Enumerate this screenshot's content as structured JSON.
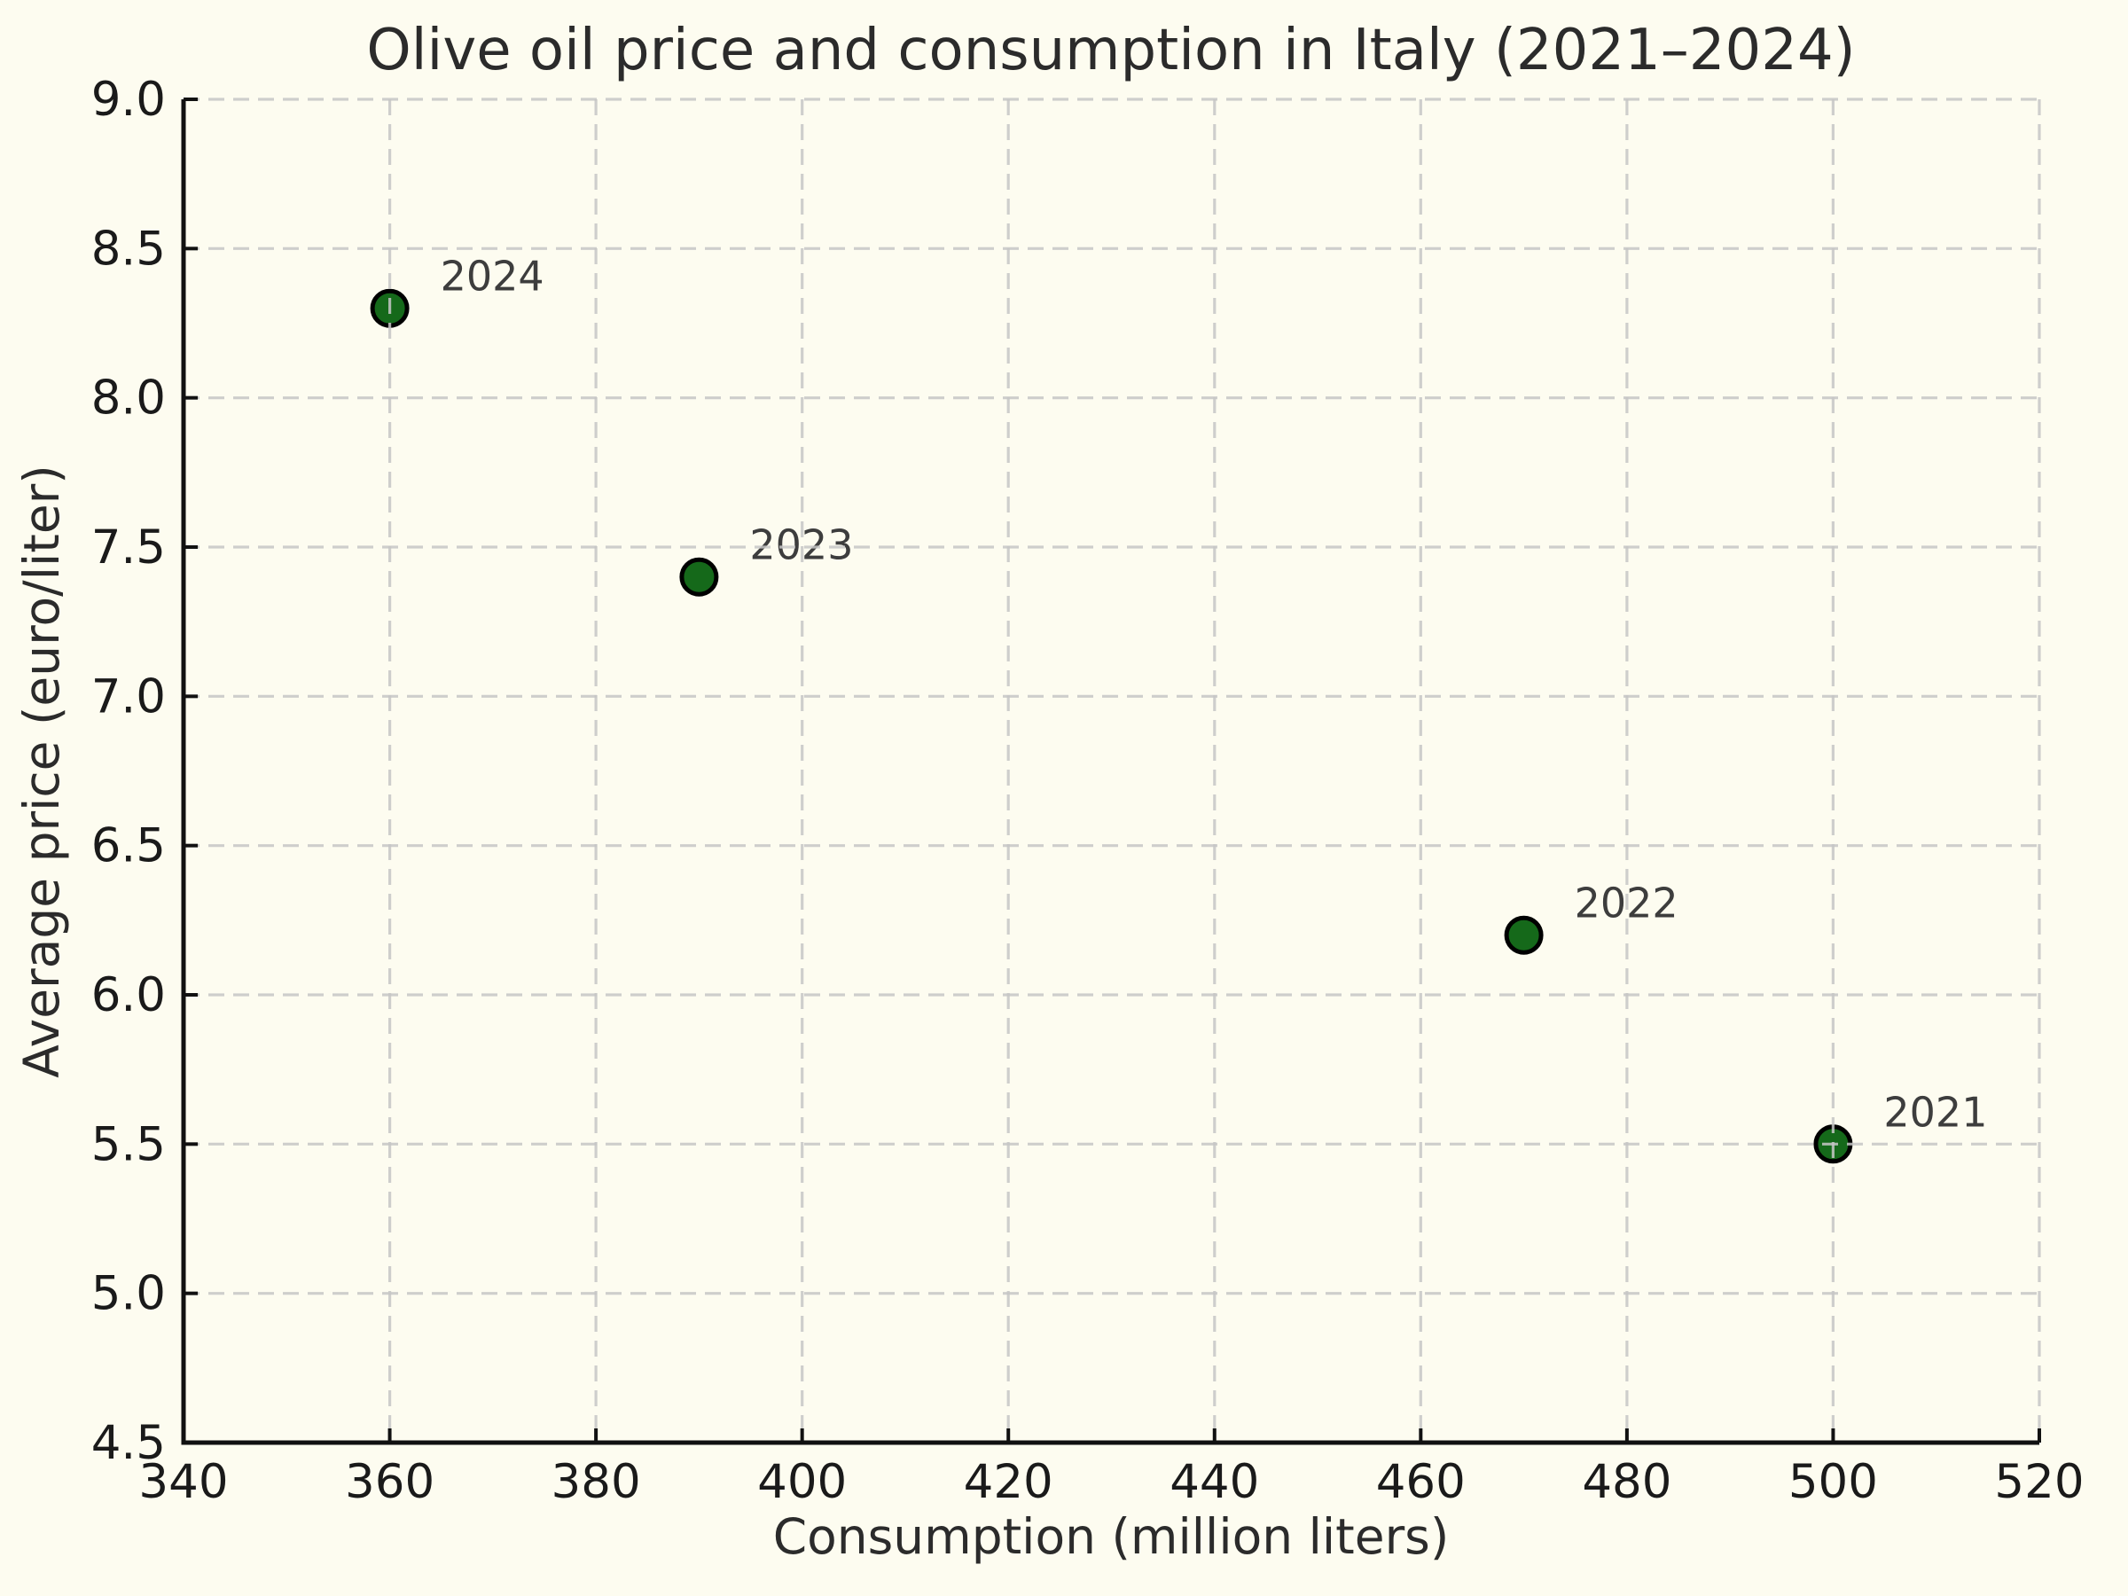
{
  "chart_data": {
    "type": "scatter",
    "title": "Olive oil price and consumption in Italy (2021–2024)",
    "xlabel": "Consumption (million liters)",
    "ylabel": "Average price (euro/liter)",
    "xlim": [
      340,
      520
    ],
    "ylim": [
      4.5,
      9.0
    ],
    "xticks": [
      "340",
      "360",
      "380",
      "400",
      "420",
      "440",
      "460",
      "480",
      "500",
      "520"
    ],
    "yticks": [
      "4.5",
      "5.0",
      "5.5",
      "6.0",
      "6.5",
      "7.0",
      "7.5",
      "8.0",
      "8.5",
      "9.0"
    ],
    "grid": "dashed, light gray, drawn above points",
    "legend": "none",
    "points": [
      {
        "label": "2021",
        "x": 500,
        "y": 5.5
      },
      {
        "label": "2022",
        "x": 470,
        "y": 6.2
      },
      {
        "label": "2023",
        "x": 390,
        "y": 7.4
      },
      {
        "label": "2024",
        "x": 360,
        "y": 8.3
      }
    ],
    "colors": {
      "background": "#fdfcf0",
      "marker_fill": "#15691a",
      "marker_edge": "#000000",
      "grid": "#c6c6c6",
      "axis": "#111111",
      "title_text": "#2b2b2b",
      "tick_text": "#1a1a1a",
      "annotation_text": "#3d3d3d"
    }
  }
}
